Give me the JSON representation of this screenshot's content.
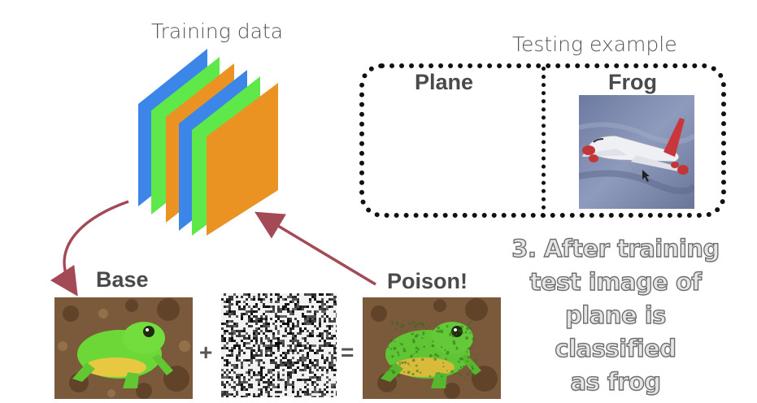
{
  "training": {
    "title": "Training data",
    "layer_colors": [
      "#3b86e8",
      "#5ee84a",
      "#ea9322",
      "#3b86e8",
      "#5ee84a",
      "#ea9322"
    ]
  },
  "testing": {
    "title": "Testing example",
    "col_left": "Plane",
    "col_right": "Frog"
  },
  "labels": {
    "base": "Base",
    "poison": "Poison!",
    "plus": "+",
    "equals": "="
  },
  "caption": {
    "lines": [
      "3. After training",
      "test image of",
      "plane is",
      "classified",
      "as frog"
    ]
  },
  "colors": {
    "arrow": "#a44a57",
    "frog_green": "#6cd838",
    "soil": "#7a5a3a"
  }
}
